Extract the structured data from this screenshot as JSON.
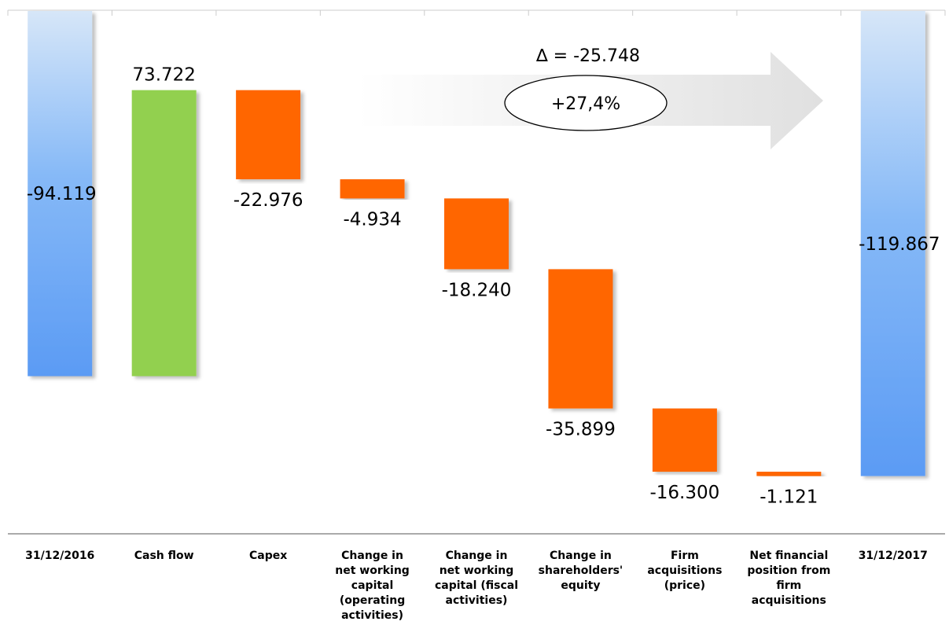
{
  "chart_data": {
    "type": "bar",
    "subtype": "waterfall",
    "categories": [
      "31/12/2016",
      "Cash flow",
      "Capex",
      "Change in net working capital (operating activities)",
      "Change in net working capital (fiscal activities)",
      "Change in shareholders' equity",
      "Firm acquisitions (price)",
      "Net financial position from firm acquisitions",
      "31/12/2017"
    ],
    "category_lines": [
      [
        "31/12/2016"
      ],
      [
        "Cash flow"
      ],
      [
        "Capex"
      ],
      [
        "Change in",
        "net working",
        "capital",
        "(operating",
        "activities)"
      ],
      [
        "Change in",
        "net working",
        "capital (fiscal",
        "activities)"
      ],
      [
        "Change in",
        "shareholders'",
        "equity"
      ],
      [
        "Firm",
        "acquisitions",
        "(price)"
      ],
      [
        "Net financial",
        "position from",
        "firm",
        "acquisitions"
      ],
      [
        "31/12/2017"
      ]
    ],
    "values": [
      -94.119,
      73.722,
      -22.976,
      -4.934,
      -18.24,
      -35.899,
      -16.3,
      -1.121,
      -119.867
    ],
    "kinds": [
      "total",
      "increase",
      "decrease",
      "decrease",
      "decrease",
      "decrease",
      "decrease",
      "decrease",
      "total"
    ],
    "value_labels": [
      "-94.119",
      "73.722",
      "-22.976",
      "-4.934",
      "-18.240",
      "-35.899",
      "-16.300",
      "-1.121",
      "-119.867"
    ],
    "annotation_delta": "∆ = -25.748",
    "annotation_percent": "+27,4%",
    "colors": {
      "total_top": "#d6e6f8",
      "total_mid": "#86b9f7",
      "total_bottom": "#5b9bf4",
      "increase": "#92d050",
      "decrease": "#ff6600",
      "axis": "#aaaaaa",
      "arrow": "#e6e6e6"
    }
  }
}
